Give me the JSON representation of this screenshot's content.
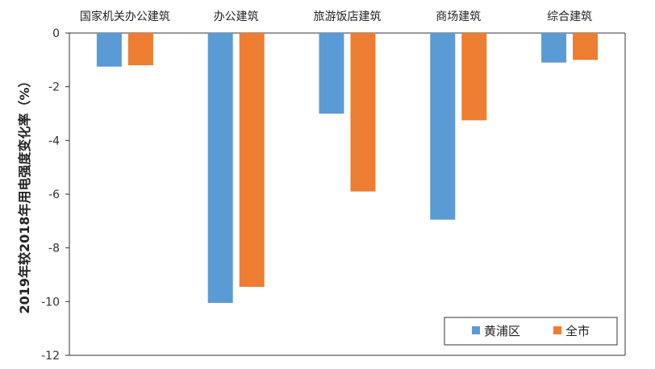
{
  "chart_data": {
    "type": "bar",
    "categories": [
      "国家机关办公建筑",
      "办公建筑",
      "旅游饭店建筑",
      "商场建筑",
      "综合建筑"
    ],
    "series": [
      {
        "name": "黄浦区",
        "color": "#5b9bd5",
        "values": [
          -1.25,
          -10.05,
          -3.0,
          -6.95,
          -1.1
        ]
      },
      {
        "name": "全市",
        "color": "#ed7d31",
        "values": [
          -1.2,
          -9.45,
          -5.9,
          -3.25,
          -1.0
        ]
      }
    ],
    "ylabel": "2019年较2018年用电强度变化率（%）",
    "ylim": [
      -12,
      0
    ],
    "yticks": [
      "0",
      "-2",
      "-4",
      "-6",
      "-8",
      "-10",
      "-12"
    ],
    "ytick_values": [
      0,
      -2,
      -4,
      -6,
      -8,
      -10,
      -12
    ],
    "category_label_position": "top",
    "legend_position": "bottom-right",
    "grid": false
  }
}
